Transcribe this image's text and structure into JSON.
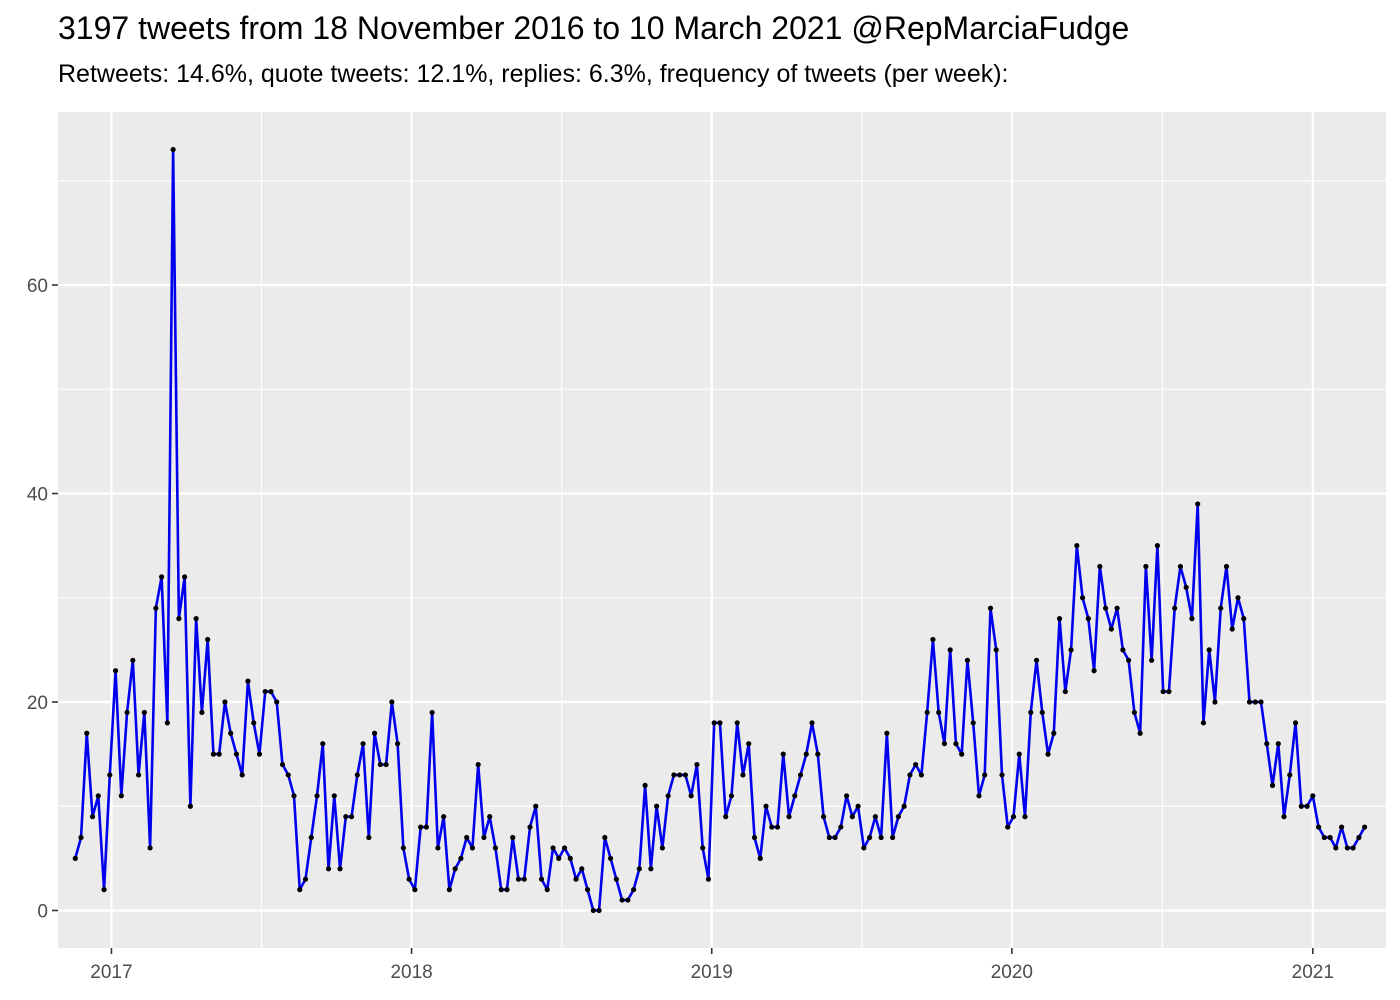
{
  "header": {
    "title": "3197 tweets from 18 November 2016 to 10 March 2021 @RepMarciaFudge",
    "subtitle": "Retweets: 14.6%, quote tweets: 12.1%, replies: 6.3%, frequency of tweets (per week):"
  },
  "colors": {
    "panel": "#ebebeb",
    "grid_major": "#ffffff",
    "line": "#0000ee",
    "point": "#000000",
    "tick_text": "#4d4d4d"
  },
  "chart_data": {
    "type": "line",
    "title": "3197 tweets from 18 November 2016 to 10 March 2021 @RepMarciaFudge",
    "subtitle": "Retweets: 14.6%, quote tweets: 12.1%, replies: 6.3%, frequency of tweets (per week):",
    "xlabel": "",
    "ylabel": "",
    "x_start": "2016-11-18",
    "x_step_days": 7,
    "ylim": [
      -3.6,
      76.6
    ],
    "xlim": [
      "2016-10-28",
      "2021-03-31"
    ],
    "x_ticks": [
      {
        "date": "2017-01-01",
        "label": "2017"
      },
      {
        "date": "2018-01-01",
        "label": "2018"
      },
      {
        "date": "2019-01-01",
        "label": "2019"
      },
      {
        "date": "2020-01-01",
        "label": "2020"
      },
      {
        "date": "2021-01-01",
        "label": "2021"
      }
    ],
    "y_ticks": [
      0,
      20,
      40,
      60
    ],
    "grid": true,
    "series": [
      {
        "values": [
          5,
          7,
          17,
          9,
          11,
          2,
          13,
          23,
          11,
          19,
          24,
          13,
          19,
          6,
          29,
          32,
          18,
          73,
          28,
          32,
          10,
          28,
          19,
          26,
          15,
          15,
          20,
          17,
          15,
          13,
          22,
          18,
          15,
          21,
          21,
          20,
          14,
          13,
          11,
          2,
          3,
          7,
          11,
          16,
          4,
          11,
          4,
          9,
          9,
          13,
          16,
          7,
          17,
          14,
          14,
          20,
          16,
          6,
          3,
          2,
          8,
          8,
          19,
          6,
          9,
          2,
          4,
          5,
          7,
          6,
          14,
          7,
          9,
          6,
          2,
          2,
          7,
          3,
          3,
          8,
          10,
          3,
          2,
          6,
          5,
          6,
          5,
          3,
          4,
          2,
          0,
          0,
          7,
          5,
          3,
          1,
          1,
          2,
          4,
          12,
          4,
          10,
          6,
          11,
          13,
          13,
          13,
          11,
          14,
          6,
          3,
          18,
          18,
          9,
          11,
          18,
          13,
          16,
          7,
          5,
          10,
          8,
          8,
          15,
          9,
          11,
          13,
          15,
          18,
          15,
          9,
          7,
          7,
          8,
          11,
          9,
          10,
          6,
          7,
          9,
          7,
          17,
          7,
          9,
          10,
          13,
          14,
          13,
          19,
          26,
          19,
          16,
          25,
          16,
          15,
          24,
          18,
          11,
          13,
          29,
          25,
          13,
          8,
          9,
          15,
          9,
          19,
          24,
          19,
          15,
          17,
          28,
          21,
          25,
          35,
          30,
          28,
          23,
          33,
          29,
          27,
          29,
          25,
          24,
          19,
          17,
          33,
          24,
          35,
          21,
          21,
          29,
          33,
          31,
          28,
          39,
          18,
          25,
          20,
          29,
          33,
          27,
          30,
          28,
          20,
          20,
          20,
          16,
          12,
          16,
          9,
          13,
          18,
          10,
          10,
          11,
          8,
          7,
          7,
          6,
          8,
          6,
          6,
          7,
          8
        ]
      }
    ]
  }
}
